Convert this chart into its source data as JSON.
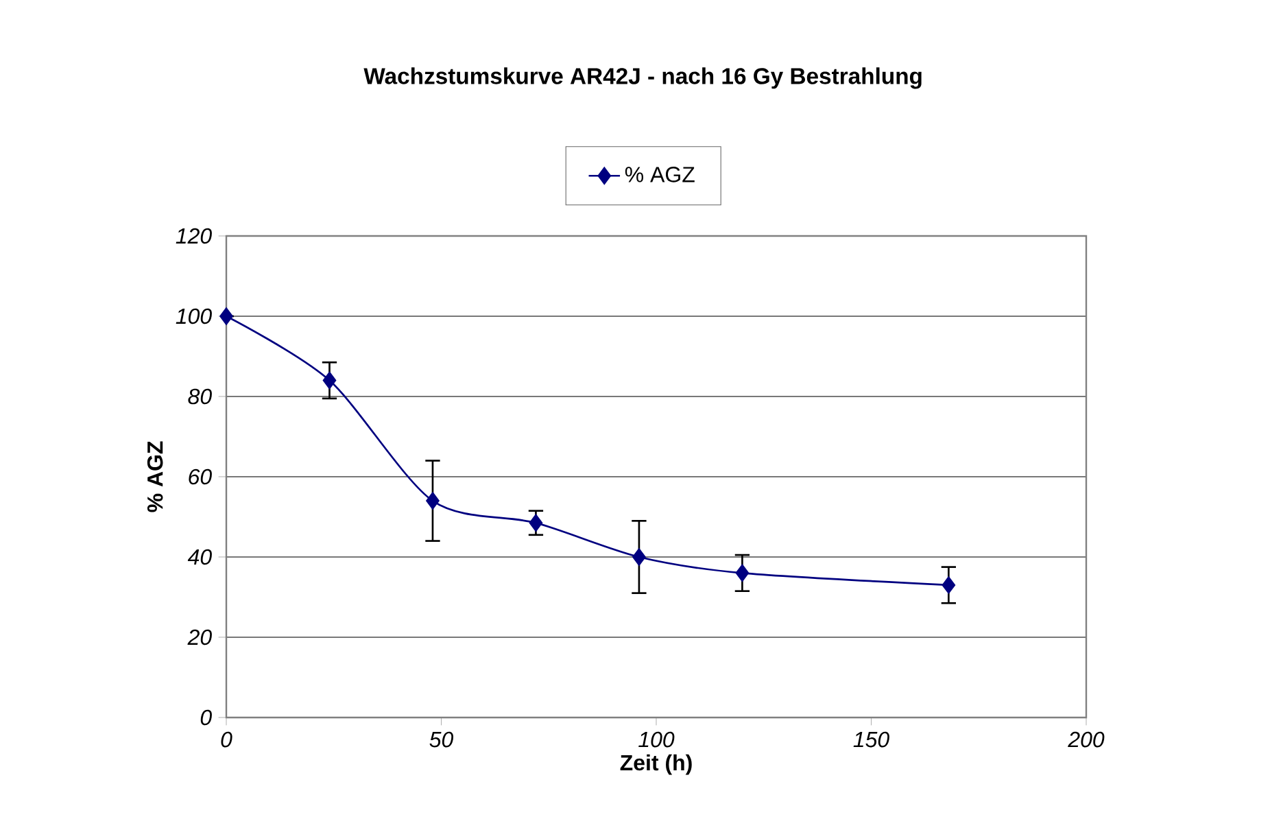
{
  "chart_data": {
    "type": "line",
    "title": "Wachzstumskurve AR42J - nach 16 Gy Bestrahlung",
    "xlabel": "Zeit (h)",
    "ylabel": "% AGZ",
    "x": [
      0,
      24,
      48,
      72,
      96,
      120,
      168
    ],
    "series": [
      {
        "name": "% AGZ",
        "color": "#000080",
        "values": [
          100,
          84,
          54,
          48.5,
          40,
          36,
          33
        ],
        "errors": [
          null,
          4.5,
          10,
          3,
          9,
          4.5,
          4.5
        ]
      }
    ],
    "xlim": [
      0,
      200
    ],
    "xticks": [
      0,
      50,
      100,
      150,
      200
    ],
    "ylim": [
      0,
      120
    ],
    "yticks": [
      0,
      20,
      40,
      60,
      80,
      100,
      120
    ],
    "grid": "y",
    "legend": "top",
    "marker": "diamond",
    "line_style": "solid"
  }
}
